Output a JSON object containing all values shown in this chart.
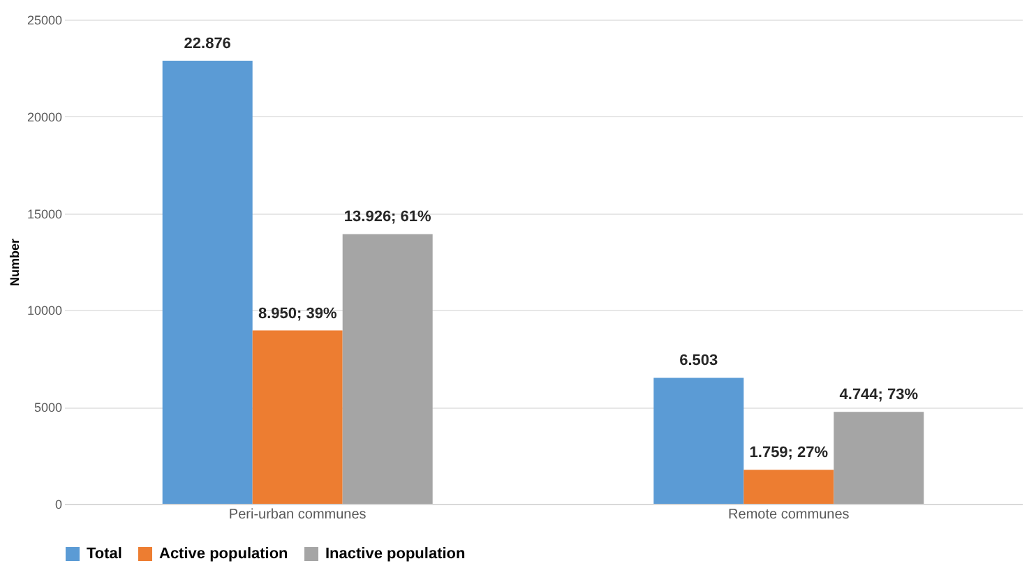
{
  "chart_data": {
    "type": "bar",
    "ylabel": "Number",
    "categories": [
      "Peri-urban communes",
      "Remote communes"
    ],
    "series": [
      {
        "name": "Total",
        "color": "#5b9bd5",
        "values": [
          22876,
          6503
        ],
        "value_labels": [
          "22.876",
          "6.503"
        ]
      },
      {
        "name": "Active population",
        "color": "#ed7d31",
        "values": [
          8950,
          1759
        ],
        "value_labels": [
          "8.950; 39%",
          "1.759; 27%"
        ]
      },
      {
        "name": "Inactive population",
        "color": "#a5a5a5",
        "values": [
          13926,
          4744
        ],
        "value_labels": [
          "13.926; 61%",
          "4.744; 73%"
        ]
      }
    ],
    "ylim": [
      0,
      25000
    ],
    "yticks": [
      0,
      5000,
      10000,
      15000,
      20000,
      25000
    ],
    "grid": "y",
    "legend": "bottom"
  }
}
